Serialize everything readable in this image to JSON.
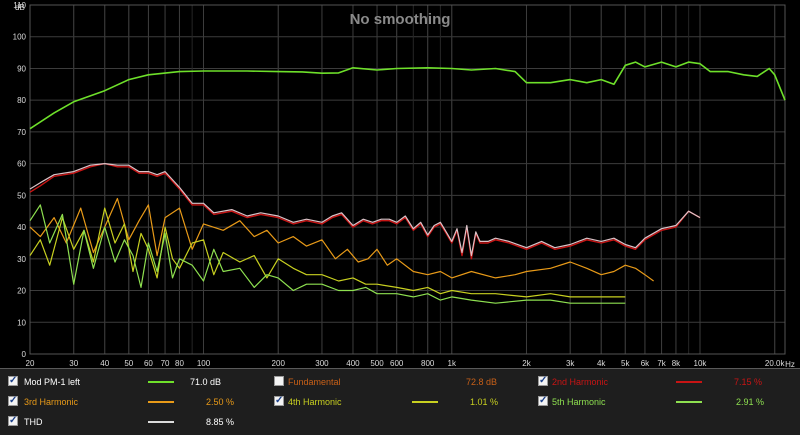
{
  "chart_data": {
    "type": "line",
    "title": "No smoothing",
    "ylabel": "dB",
    "xlabel": "Hz",
    "x_scale": "log",
    "xlim": [
      20,
      22000
    ],
    "ylim": [
      0,
      110
    ],
    "grid": true,
    "y_ticks": [
      "0",
      "10",
      "20",
      "30",
      "40",
      "50",
      "60",
      "70",
      "80",
      "90",
      "100",
      "110"
    ],
    "x_ticks": [
      {
        "v": 20,
        "l": "20"
      },
      {
        "v": 30,
        "l": "30"
      },
      {
        "v": 40,
        "l": "40"
      },
      {
        "v": 50,
        "l": "50"
      },
      {
        "v": 60,
        "l": "60"
      },
      {
        "v": 70,
        "l": "70"
      },
      {
        "v": 80,
        "l": "80"
      },
      {
        "v": 100,
        "l": "100"
      },
      {
        "v": 200,
        "l": "200"
      },
      {
        "v": 300,
        "l": "300"
      },
      {
        "v": 400,
        "l": "400"
      },
      {
        "v": 500,
        "l": "500"
      },
      {
        "v": 600,
        "l": "600"
      },
      {
        "v": 800,
        "l": "800"
      },
      {
        "v": 1000,
        "l": "1k"
      },
      {
        "v": 2000,
        "l": "2k"
      },
      {
        "v": 3000,
        "l": "3k"
      },
      {
        "v": 4000,
        "l": "4k"
      },
      {
        "v": 5000,
        "l": "5k"
      },
      {
        "v": 6000,
        "l": "6k"
      },
      {
        "v": 7000,
        "l": "7k"
      },
      {
        "v": 8000,
        "l": "8k"
      },
      {
        "v": 10000,
        "l": "10k"
      },
      {
        "v": 20000,
        "l": "20.0k"
      }
    ],
    "series": [
      {
        "name": "Mod PM-1 left",
        "color": "#6ee02a",
        "width": 1.6,
        "x": [
          20,
          25,
          30,
          40,
          50,
          60,
          80,
          100,
          150,
          200,
          250,
          300,
          350,
          400,
          500,
          600,
          800,
          1000,
          1200,
          1500,
          1800,
          2000,
          2500,
          3000,
          3500,
          4000,
          4500,
          5000,
          5500,
          6000,
          7000,
          8000,
          9000,
          10000,
          11000,
          13000,
          15000,
          17000,
          19000,
          20000,
          22000
        ],
        "y": [
          71,
          76,
          79.5,
          83,
          86.5,
          88,
          89,
          89.2,
          89.2,
          89,
          88.9,
          88.5,
          88.6,
          90.2,
          89.5,
          90,
          90.2,
          90,
          89.5,
          90,
          89,
          85.5,
          85.5,
          86.5,
          85.5,
          86.5,
          85,
          91,
          92,
          90.5,
          92,
          90.5,
          92,
          91.5,
          89,
          89,
          88,
          87.5,
          90,
          88,
          80
        ]
      },
      {
        "name": "2nd Harmonic",
        "color": "#c81414",
        "width": 1.4,
        "x": [
          20,
          22,
          25,
          30,
          35,
          40,
          45,
          50,
          55,
          60,
          65,
          70,
          80,
          90,
          100,
          110,
          130,
          150,
          170,
          200,
          230,
          260,
          300,
          330,
          360,
          400,
          440,
          480,
          520,
          560,
          600,
          650,
          700,
          750,
          800,
          850,
          900,
          950,
          1000,
          1050,
          1100,
          1150,
          1200,
          1250,
          1300,
          1400,
          1500,
          1700,
          2000,
          2300,
          2600,
          3000,
          3500,
          4000,
          4500,
          5000,
          5500,
          6000,
          7000,
          8000,
          9000,
          10000
        ],
        "y": [
          51,
          53,
          56,
          57,
          59,
          60,
          59,
          59,
          57,
          57,
          56,
          57,
          52,
          47,
          47,
          44,
          45,
          43,
          44,
          43,
          41,
          42,
          41,
          43,
          44,
          40,
          42,
          41,
          42,
          42,
          41,
          43,
          39,
          41,
          37,
          40,
          41,
          38,
          35,
          39,
          31,
          40,
          30,
          38,
          35,
          35,
          36,
          35,
          33,
          35,
          33,
          34,
          36,
          35,
          36,
          34,
          33,
          36,
          39,
          40,
          45,
          43
        ]
      },
      {
        "name": "THD",
        "color": "#dcc3c8",
        "width": 1.2,
        "x": [
          20,
          22,
          25,
          30,
          35,
          40,
          45,
          50,
          55,
          60,
          65,
          70,
          80,
          90,
          100,
          110,
          130,
          150,
          170,
          200,
          230,
          260,
          300,
          330,
          360,
          400,
          440,
          480,
          520,
          560,
          600,
          650,
          700,
          750,
          800,
          850,
          900,
          950,
          1000,
          1050,
          1100,
          1150,
          1200,
          1250,
          1300,
          1400,
          1500,
          1700,
          2000,
          2300,
          2600,
          3000,
          3500,
          4000,
          4500,
          5000,
          5500,
          6000,
          7000,
          8000,
          9000,
          10000
        ],
        "y": [
          52,
          54,
          56.5,
          57.5,
          59.5,
          60,
          59.5,
          59.5,
          57.5,
          57.5,
          56.5,
          57.5,
          52.5,
          47.5,
          47.5,
          44.5,
          45.5,
          43.5,
          44.5,
          43.5,
          41.5,
          42.5,
          41.5,
          43.5,
          44.5,
          40.5,
          42.5,
          41.5,
          42.5,
          42.5,
          41.5,
          43.5,
          39.5,
          41.5,
          37.5,
          40.5,
          41.5,
          38.5,
          35.5,
          39.5,
          32,
          40.5,
          31,
          38.5,
          35.5,
          35.5,
          36.5,
          35.5,
          33.5,
          35.5,
          33.5,
          34.5,
          36.5,
          35.5,
          36.5,
          34.5,
          33.5,
          36.5,
          39.5,
          40.5,
          45,
          43
        ]
      },
      {
        "name": "3rd Harmonic",
        "color": "#e89a18",
        "width": 1.2,
        "x": [
          20,
          22,
          25,
          28,
          32,
          36,
          40,
          45,
          50,
          55,
          60,
          65,
          70,
          80,
          90,
          100,
          120,
          140,
          160,
          180,
          200,
          230,
          260,
          300,
          340,
          380,
          420,
          460,
          500,
          550,
          600,
          700,
          800,
          900,
          1000,
          1200,
          1500,
          1800,
          2000,
          2500,
          3000,
          3500,
          4000,
          4500,
          5000,
          5500,
          6000,
          6500
        ],
        "y": [
          40,
          37,
          43,
          35,
          46,
          32,
          40,
          49,
          36,
          42,
          47,
          31,
          43,
          46,
          33,
          41,
          39,
          42,
          37,
          39,
          35,
          37,
          34,
          36,
          30,
          33,
          29,
          30,
          33,
          28,
          30,
          26,
          25,
          26,
          24,
          26,
          24,
          25,
          26,
          27,
          29,
          27,
          25,
          26,
          28,
          27,
          25,
          23
        ]
      },
      {
        "name": "4th Harmonic",
        "color": "#c8d020",
        "width": 1.2,
        "x": [
          20,
          22,
          24,
          27,
          30,
          33,
          36,
          40,
          44,
          48,
          52,
          56,
          60,
          65,
          70,
          75,
          80,
          90,
          100,
          110,
          120,
          140,
          160,
          180,
          200,
          230,
          260,
          300,
          350,
          400,
          450,
          500,
          600,
          700,
          800,
          900,
          1000,
          1200,
          1500,
          2000,
          2500,
          3000,
          4000,
          5000
        ],
        "y": [
          31,
          36,
          28,
          43,
          33,
          39,
          29,
          46,
          35,
          41,
          26,
          38,
          33,
          24,
          40,
          30,
          27,
          35,
          36,
          25,
          32,
          29,
          31,
          24,
          30,
          27,
          25,
          25,
          23,
          24,
          22,
          22,
          21,
          20,
          21,
          19,
          20,
          19,
          19,
          18,
          19,
          18,
          18,
          18
        ]
      },
      {
        "name": "5th Harmonic",
        "color": "#8ee050",
        "width": 1.2,
        "x": [
          20,
          22,
          24,
          27,
          30,
          33,
          36,
          40,
          44,
          48,
          52,
          56,
          60,
          65,
          70,
          75,
          80,
          90,
          100,
          110,
          120,
          140,
          160,
          180,
          200,
          230,
          260,
          300,
          350,
          400,
          450,
          500,
          600,
          700,
          800,
          900,
          1000,
          1200,
          1500,
          2000,
          2500,
          3000,
          4000,
          5000
        ],
        "y": [
          42,
          47,
          35,
          44,
          22,
          39,
          27,
          40,
          29,
          36,
          31,
          21,
          35,
          26,
          38,
          24,
          30,
          28,
          23,
          33,
          26,
          27,
          21,
          25,
          24,
          20,
          22,
          22,
          20,
          20,
          21,
          19,
          19,
          18,
          19,
          17,
          18,
          17,
          16,
          17,
          17,
          16,
          16,
          16
        ]
      }
    ]
  },
  "legend": [
    {
      "name": "Mod PM-1 left",
      "value": "71.0 dB",
      "checked": true,
      "label_color": "#ffffff",
      "value_color": "#ffffff",
      "swatch_color": "#6ee02a"
    },
    {
      "name": "Fundamental",
      "value": "72.8 dB",
      "checked": false,
      "label_color": "#c86018",
      "value_color": "#c86018",
      "swatch_color": ""
    },
    {
      "name": "2nd Harmonic",
      "value": "7.15 %",
      "checked": true,
      "label_color": "#c81414",
      "value_color": "#c81414",
      "swatch_color": "#c81414"
    },
    {
      "name": "3rd Harmonic",
      "value": "2.50 %",
      "checked": true,
      "label_color": "#e89a18",
      "value_color": "#e89a18",
      "swatch_color": "#e89a18"
    },
    {
      "name": "4th Harmonic",
      "value": "1.01 %",
      "checked": true,
      "label_color": "#c8d020",
      "value_color": "#c8d020",
      "swatch_color": "#c8d020"
    },
    {
      "name": "5th Harmonic",
      "value": "2.91 %",
      "checked": true,
      "label_color": "#8ee050",
      "value_color": "#8ee050",
      "swatch_color": "#8ee050"
    },
    {
      "name": "THD",
      "value": "8.85 %",
      "checked": true,
      "label_color": "#ffffff",
      "value_color": "#ffffff",
      "swatch_color": "#dcdcdc"
    }
  ]
}
